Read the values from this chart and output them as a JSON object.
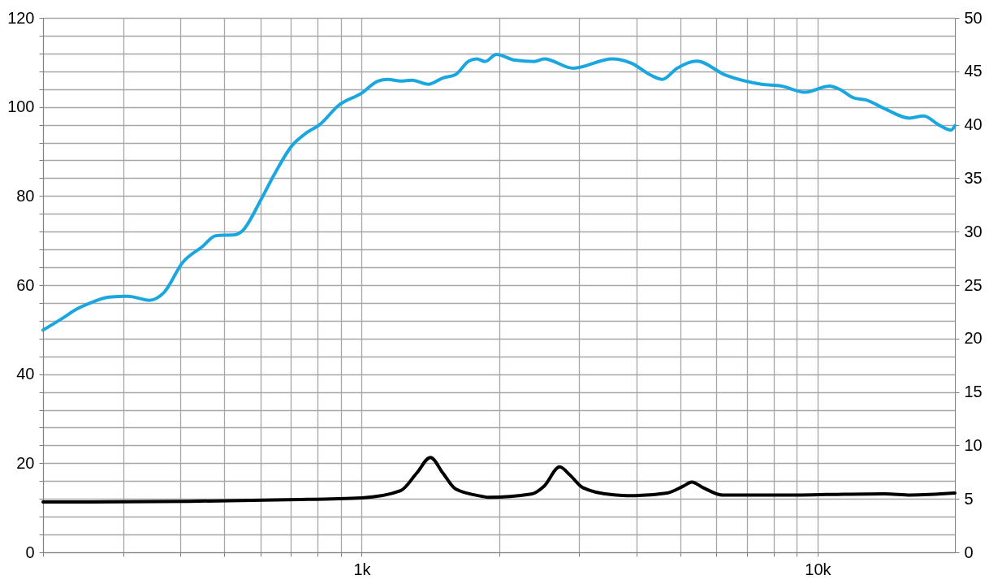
{
  "chart_data": {
    "type": "line",
    "log": "x",
    "grid": true,
    "marker": "none",
    "line_style": "solid",
    "xlim": [
      200,
      20000
    ],
    "xticks": [
      {
        "value": 200,
        "label": null
      },
      {
        "value": 300,
        "label": null
      },
      {
        "value": 400,
        "label": null
      },
      {
        "value": 500,
        "label": null
      },
      {
        "value": 600,
        "label": null
      },
      {
        "value": 700,
        "label": null
      },
      {
        "value": 800,
        "label": null
      },
      {
        "value": 900,
        "label": null
      },
      {
        "value": 1000,
        "label": "1k"
      },
      {
        "value": 2000,
        "label": null
      },
      {
        "value": 3000,
        "label": null
      },
      {
        "value": 4000,
        "label": null
      },
      {
        "value": 5000,
        "label": null
      },
      {
        "value": 6000,
        "label": null
      },
      {
        "value": 7000,
        "label": null
      },
      {
        "value": 8000,
        "label": null
      },
      {
        "value": 9000,
        "label": null
      },
      {
        "value": 10000,
        "label": "10k"
      }
    ],
    "ylim": [
      0,
      120
    ],
    "yticks": [
      0,
      {
        "value": 4,
        "label": null
      },
      {
        "value": 8,
        "label": null
      },
      {
        "value": 12,
        "label": null
      },
      {
        "value": 16,
        "label": null
      },
      20,
      {
        "value": 24,
        "label": null
      },
      {
        "value": 28,
        "label": null
      },
      {
        "value": 32,
        "label": null
      },
      {
        "value": 36,
        "label": null
      },
      40,
      {
        "value": 44,
        "label": null
      },
      {
        "value": 48,
        "label": null
      },
      {
        "value": 52,
        "label": null
      },
      {
        "value": 56,
        "label": null
      },
      60,
      {
        "value": 64,
        "label": null
      },
      {
        "value": 68,
        "label": null
      },
      {
        "value": 72,
        "label": null
      },
      {
        "value": 76,
        "label": null
      },
      80,
      {
        "value": 84,
        "label": null
      },
      {
        "value": 88,
        "label": null
      },
      {
        "value": 92,
        "label": null
      },
      {
        "value": 96,
        "label": null
      },
      100,
      {
        "value": 104,
        "label": null
      },
      {
        "value": 108,
        "label": null
      },
      {
        "value": 112,
        "label": null
      },
      {
        "value": 116,
        "label": null
      },
      120
    ],
    "y2lim": [
      0,
      50
    ],
    "y2ticks": [
      0,
      5,
      10,
      15,
      20,
      25,
      30,
      35,
      40,
      45,
      50
    ],
    "series": [
      {
        "color": "#1aa7e0",
        "x": [
          200,
          221,
          237,
          257,
          279,
          307,
          342,
          368,
          405,
          448,
          478,
          528,
          545,
          602,
          642,
          703,
          757,
          808,
          891,
          1000,
          1085,
          1140,
          1217,
          1288,
          1399,
          1506,
          1607,
          1717,
          1789,
          1864,
          1974,
          2168,
          2392,
          2513,
          2911,
          3542,
          3908,
          4312,
          4568,
          4918,
          5429,
          6293,
          7537,
          8318,
          9400,
          10620,
          11160,
          12020,
          12730,
          14040,
          15880,
          17100,
          18420,
          19600,
          20000
        ],
        "values": [
          49.9,
          52.6,
          54.6,
          56.2,
          57.3,
          57.5,
          56.6,
          58.3,
          65.1,
          68.7,
          71.1,
          71.3,
          72,
          79.3,
          84.7,
          91.3,
          94.2,
          96,
          100.4,
          103.1,
          105.8,
          106.2,
          105.8,
          106,
          105.1,
          106.5,
          107.3,
          110.3,
          110.8,
          110.2,
          111.8,
          110.5,
          110.2,
          110.8,
          108.7,
          110.8,
          109.8,
          107.1,
          106.2,
          108.7,
          110.3,
          107.1,
          105.1,
          104.7,
          103.3,
          104.7,
          104,
          102,
          101.6,
          99.6,
          97.5,
          98,
          96,
          94.8,
          95.8
        ]
      },
      {
        "color": "#000000",
        "axis": "y2",
        "x": [
          200,
          420,
          686,
          1000,
          1217,
          1321,
          1415,
          1506,
          1607,
          1832,
          1900,
          2354,
          2513,
          2717,
          2858,
          3055,
          3542,
          3972,
          4677,
          5079,
          5294,
          5606,
          6185,
          7047,
          9000,
          10780,
          14040,
          15990,
          20000
        ],
        "values": [
          4.71,
          4.77,
          4.92,
          5.1,
          5.77,
          7.43,
          8.88,
          7.43,
          5.92,
          5.25,
          5.15,
          5.45,
          6.2,
          8.0,
          7.26,
          6.05,
          5.39,
          5.3,
          5.54,
          6.2,
          6.57,
          6.05,
          5.36,
          5.36,
          5.36,
          5.42,
          5.48,
          5.36,
          5.54
        ]
      }
    ]
  }
}
